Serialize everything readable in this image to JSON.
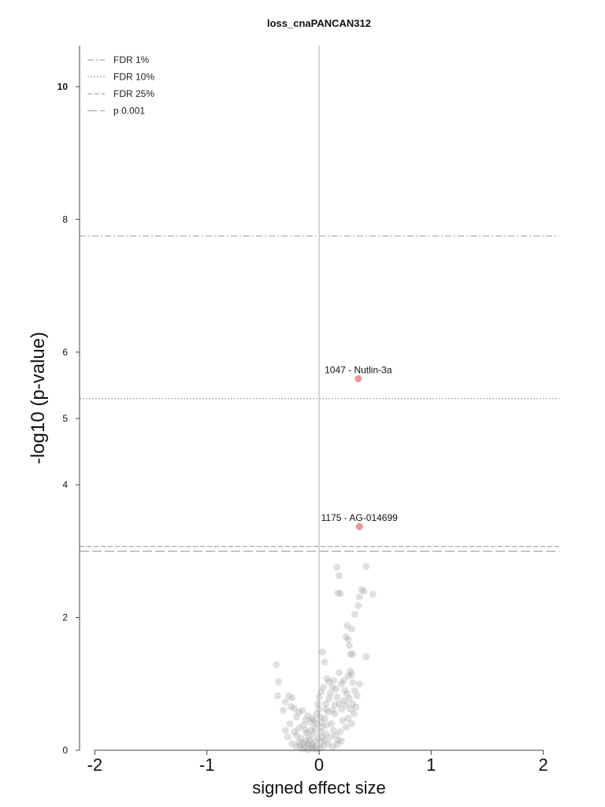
{
  "chart_data": {
    "type": "scatter",
    "title": "loss_cnaPANCAN312",
    "xlabel": "signed effect size",
    "ylabel": "-log10 (p-value)",
    "xlim": [
      -2.15,
      2.15
    ],
    "ylim": [
      0,
      10.6
    ],
    "x_ticks": [
      "-2",
      "-1",
      "0",
      "1",
      "2"
    ],
    "y_ticks": [
      "0",
      "2",
      "4",
      "5",
      "6",
      "8",
      "10"
    ],
    "grid": false,
    "legend_position": "top-left",
    "colors": {
      "significant": "#f08080",
      "nonsignificant": "#999999",
      "threshold": "#aaaaaa",
      "zero_line": "#c8c8c8"
    },
    "thresholds": [
      {
        "name": "FDR 1%",
        "y": 7.75,
        "dash": "8 3 2 3"
      },
      {
        "name": "FDR 10%",
        "y": 5.3,
        "dash": "2 2"
      },
      {
        "name": "FDR 25%",
        "y": 3.07,
        "dash": "6 3"
      },
      {
        "name": "p 0.001",
        "y": 3.0,
        "dash": "12 4"
      }
    ],
    "highlighted": [
      {
        "label": "1047 - Nutlin-3a",
        "x": 0.35,
        "y": 5.6
      },
      {
        "label": "1175 - AG-014699",
        "x": 0.36,
        "y": 3.37
      }
    ],
    "points": [
      [
        -0.38,
        1.29
      ],
      [
        -0.36,
        1.03
      ],
      [
        -0.37,
        0.82
      ],
      [
        -0.3,
        0.73
      ],
      [
        -0.27,
        0.82
      ],
      [
        -0.24,
        0.79
      ],
      [
        -0.22,
        0.63
      ],
      [
        -0.25,
        0.66
      ],
      [
        -0.18,
        0.57
      ],
      [
        -0.15,
        0.6
      ],
      [
        -0.2,
        0.5
      ],
      [
        -0.12,
        0.46
      ],
      [
        -0.1,
        0.52
      ],
      [
        -0.08,
        0.42
      ],
      [
        -0.14,
        0.38
      ],
      [
        -0.18,
        0.33
      ],
      [
        -0.22,
        0.28
      ],
      [
        -0.2,
        0.22
      ],
      [
        -0.16,
        0.18
      ],
      [
        -0.12,
        0.14
      ],
      [
        -0.1,
        0.1
      ],
      [
        -0.08,
        0.06
      ],
      [
        -0.06,
        0.03
      ],
      [
        -0.03,
        0.02
      ],
      [
        -0.13,
        0.04
      ],
      [
        -0.17,
        0.07
      ],
      [
        -0.09,
        0.2
      ],
      [
        -0.05,
        0.25
      ],
      [
        -0.04,
        0.34
      ],
      [
        -0.02,
        0.4
      ],
      [
        -0.07,
        0.3
      ],
      [
        -0.11,
        0.26
      ],
      [
        -0.14,
        0.1
      ],
      [
        -0.18,
        0.12
      ],
      [
        -0.2,
        0.05
      ],
      [
        -0.15,
        0.02
      ],
      [
        -0.1,
        0.01
      ],
      [
        -0.06,
        0.08
      ],
      [
        -0.04,
        0.13
      ],
      [
        -0.01,
        0.18
      ],
      [
        -0.03,
        0.06
      ],
      [
        -0.08,
        0.15
      ],
      [
        -0.12,
        0.3
      ],
      [
        -0.05,
        0.45
      ],
      [
        -0.02,
        0.55
      ],
      [
        0.0,
        0.62
      ],
      [
        0.01,
        0.5
      ],
      [
        0.02,
        0.42
      ],
      [
        0.03,
        0.35
      ],
      [
        0.01,
        0.28
      ],
      [
        0.03,
        0.2
      ],
      [
        0.02,
        0.12
      ],
      [
        0.04,
        0.06
      ],
      [
        0.01,
        0.03
      ],
      [
        0.05,
        0.15
      ],
      [
        0.06,
        0.25
      ],
      [
        0.07,
        0.38
      ],
      [
        0.05,
        0.48
      ],
      [
        0.08,
        0.58
      ],
      [
        0.06,
        0.7
      ],
      [
        0.09,
        0.78
      ],
      [
        0.1,
        0.86
      ],
      [
        0.12,
        0.95
      ],
      [
        0.13,
        1.05
      ],
      [
        0.15,
        0.92
      ],
      [
        0.16,
        0.8
      ],
      [
        0.18,
        0.7
      ],
      [
        0.2,
        0.62
      ],
      [
        0.22,
        0.75
      ],
      [
        0.24,
        0.68
      ],
      [
        0.25,
        0.85
      ],
      [
        0.27,
        0.78
      ],
      [
        0.28,
        0.62
      ],
      [
        0.3,
        0.7
      ],
      [
        0.31,
        0.55
      ],
      [
        0.33,
        0.65
      ],
      [
        0.2,
        1.0
      ],
      [
        0.22,
        1.05
      ],
      [
        0.18,
        1.17
      ],
      [
        0.26,
        1.12
      ],
      [
        0.28,
        1.19
      ],
      [
        0.29,
        1.14
      ],
      [
        0.23,
        0.9
      ],
      [
        0.11,
        0.4
      ],
      [
        0.13,
        0.3
      ],
      [
        0.15,
        0.22
      ],
      [
        0.17,
        0.15
      ],
      [
        0.19,
        0.28
      ],
      [
        0.21,
        0.45
      ],
      [
        0.14,
        0.55
      ],
      [
        0.1,
        0.2
      ],
      [
        0.08,
        0.1
      ],
      [
        0.12,
        0.05
      ],
      [
        0.16,
        0.09
      ],
      [
        0.2,
        0.14
      ],
      [
        0.24,
        0.35
      ],
      [
        0.26,
        0.48
      ],
      [
        0.29,
        0.4
      ],
      [
        0.03,
        1.48
      ],
      [
        0.05,
        1.33
      ],
      [
        0.07,
        1.08
      ],
      [
        0.09,
        1.03
      ],
      [
        0.28,
        1.45
      ],
      [
        0.3,
        1.45
      ],
      [
        0.42,
        1.41
      ],
      [
        0.27,
        1.58
      ],
      [
        0.24,
        1.71
      ],
      [
        0.26,
        1.67
      ],
      [
        0.29,
        1.83
      ],
      [
        0.32,
        2.05
      ],
      [
        0.25,
        1.88
      ],
      [
        0.35,
        2.18
      ],
      [
        0.36,
        2.31
      ],
      [
        0.38,
        2.42
      ],
      [
        0.4,
        2.4
      ],
      [
        0.48,
        2.35
      ],
      [
        0.17,
        2.37
      ],
      [
        0.19,
        2.36
      ],
      [
        0.16,
        2.76
      ],
      [
        0.18,
        2.63
      ],
      [
        0.42,
        2.77
      ],
      [
        -0.32,
        0.6
      ],
      [
        -0.26,
        0.4
      ],
      [
        -0.28,
        0.2
      ],
      [
        -0.24,
        0.1
      ],
      [
        -0.3,
        0.3
      ],
      [
        -0.06,
        0.48
      ],
      [
        -0.01,
        0.7
      ],
      [
        0.0,
        0.8
      ],
      [
        0.02,
        0.88
      ],
      [
        0.04,
        0.95
      ],
      [
        0.06,
        0.62
      ],
      [
        0.32,
        0.9
      ],
      [
        0.34,
        0.82
      ],
      [
        0.36,
        1.0
      ],
      [
        0.3,
        1.02
      ],
      [
        0.14,
        0.68
      ],
      [
        0.12,
        0.6
      ]
    ]
  }
}
